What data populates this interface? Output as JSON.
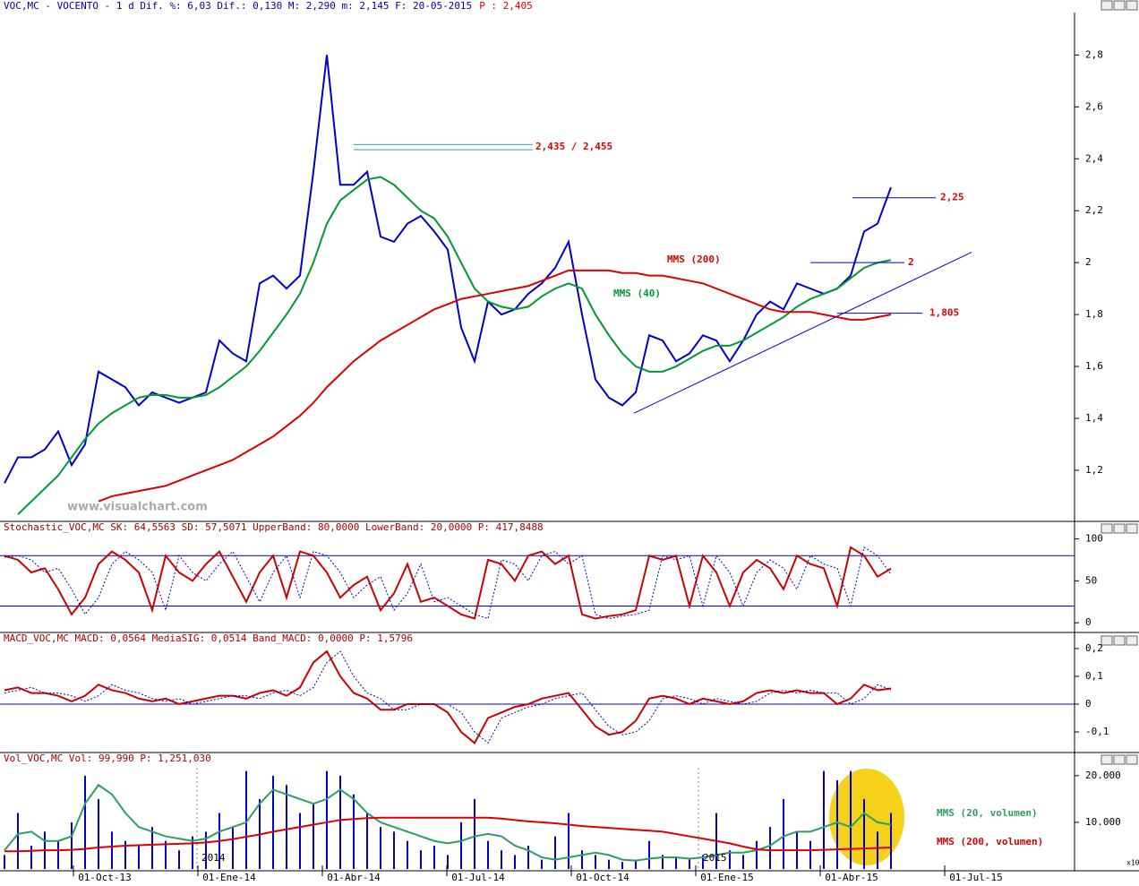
{
  "chart_data": [
    {
      "type": "line",
      "header": "VOC,MC - VOCENTO -  1 d Dif. %: 6,03 Dif.: 0,130 M: 2,290 m: 2,145 F: 20-05-2015",
      "header_price": "P : 2,405",
      "watermark": "www.visualchart.com",
      "ylim": [
        1.01,
        2.96
      ],
      "yticks": [
        {
          "value": 1.2,
          "label": "1,2"
        },
        {
          "value": 1.4,
          "label": "1,4"
        },
        {
          "value": 1.6,
          "label": "1,6"
        },
        {
          "value": 1.8,
          "label": "1,8"
        },
        {
          "value": 2,
          "label": "2"
        },
        {
          "value": 2.2,
          "label": "2,2"
        },
        {
          "value": 2.4,
          "label": "2,4"
        },
        {
          "value": 2.6,
          "label": "2,6"
        },
        {
          "value": 2.8,
          "label": "2,8"
        }
      ],
      "series": [
        {
          "color": "#0000cc",
          "values": [
            1.15,
            1.25,
            1.25,
            1.28,
            1.35,
            1.22,
            1.3,
            1.58,
            1.55,
            1.52,
            1.45,
            1.5,
            1.48,
            1.46,
            1.48,
            1.5,
            1.7,
            1.65,
            1.62,
            1.92,
            1.95,
            1.9,
            1.95,
            2.35,
            2.8,
            2.3,
            2.3,
            2.35,
            2.1,
            2.08,
            2.15,
            2.18,
            2.12,
            2.05,
            1.75,
            1.62,
            1.85,
            1.8,
            1.82,
            1.88,
            1.92,
            1.98,
            2.08,
            1.8,
            1.55,
            1.48,
            1.45,
            1.5,
            1.72,
            1.7,
            1.62,
            1.65,
            1.72,
            1.7,
            1.62,
            1.7,
            1.8,
            1.85,
            1.82,
            1.92,
            1.9,
            1.88,
            1.9,
            1.95,
            2.12,
            2.15,
            2.29
          ]
        },
        {
          "name": "MMS (40)",
          "color": "#009933",
          "values": [
            null,
            1.03,
            1.08,
            1.13,
            1.18,
            1.25,
            1.32,
            1.38,
            1.42,
            1.45,
            1.48,
            1.49,
            1.49,
            1.48,
            1.48,
            1.49,
            1.52,
            1.56,
            1.6,
            1.66,
            1.73,
            1.8,
            1.88,
            2.0,
            2.15,
            2.24,
            2.28,
            2.32,
            2.33,
            2.3,
            2.25,
            2.2,
            2.17,
            2.1,
            2.0,
            1.9,
            1.85,
            1.83,
            1.82,
            1.83,
            1.87,
            1.9,
            1.92,
            1.9,
            1.8,
            1.72,
            1.65,
            1.6,
            1.58,
            1.58,
            1.6,
            1.63,
            1.66,
            1.68,
            1.68,
            1.7,
            1.73,
            1.76,
            1.79,
            1.83,
            1.86,
            1.88,
            1.9,
            1.94,
            1.98,
            2.0,
            2.01
          ]
        },
        {
          "name": "MMS (200)",
          "color": "#dd0000",
          "values": [
            null,
            null,
            null,
            null,
            null,
            null,
            null,
            1.08,
            1.1,
            1.11,
            1.12,
            1.13,
            1.14,
            1.16,
            1.18,
            1.2,
            1.22,
            1.24,
            1.27,
            1.3,
            1.33,
            1.37,
            1.41,
            1.46,
            1.52,
            1.57,
            1.62,
            1.66,
            1.7,
            1.73,
            1.76,
            1.79,
            1.82,
            1.84,
            1.86,
            1.87,
            1.88,
            1.89,
            1.9,
            1.91,
            1.93,
            1.95,
            1.97,
            1.97,
            1.97,
            1.97,
            1.96,
            1.96,
            1.95,
            1.95,
            1.94,
            1.93,
            1.92,
            1.9,
            1.88,
            1.86,
            1.84,
            1.82,
            1.81,
            1.81,
            1.81,
            1.8,
            1.79,
            1.78,
            1.78,
            1.79,
            1.8
          ]
        }
      ],
      "annotations": [
        {
          "label": "2,435 / 2,455",
          "values": [
            2.435,
            2.455
          ]
        },
        {
          "label": "2,25",
          "value": 2.25
        },
        {
          "label": "2",
          "value": 2
        },
        {
          "label": "1,805",
          "value": 1.805
        }
      ],
      "trendline": [
        1.42,
        2.04
      ]
    },
    {
      "type": "line",
      "header": "Stochastic_VOC,MC SK: 64,5563 SD: 57,5071 UpperBand: 80,0000 LowerBand: 20,0000 P: 417,8488",
      "ylim": [
        -10.5,
        107
      ],
      "yticks": [
        0,
        50,
        100
      ],
      "bands": [
        80,
        20
      ],
      "series": [
        {
          "color": "#cc0000",
          "values": [
            80,
            75,
            60,
            65,
            40,
            10,
            30,
            70,
            85,
            75,
            60,
            15,
            80,
            60,
            50,
            70,
            85,
            55,
            25,
            60,
            80,
            30,
            85,
            80,
            60,
            30,
            45,
            55,
            15,
            35,
            70,
            25,
            30,
            20,
            10,
            5,
            75,
            70,
            50,
            80,
            85,
            70,
            80,
            10,
            5,
            8,
            10,
            15,
            80,
            75,
            80,
            20,
            80,
            60,
            20,
            60,
            75,
            65,
            40,
            80,
            70,
            65,
            20,
            90,
            80,
            55,
            64.5563
          ]
        },
        {
          "color": "#0000cc",
          "dotted": true,
          "values": [
            78,
            80,
            75,
            60,
            65,
            40,
            10,
            30,
            70,
            85,
            75,
            60,
            15,
            80,
            60,
            50,
            70,
            85,
            55,
            25,
            60,
            80,
            30,
            85,
            80,
            60,
            30,
            45,
            55,
            15,
            35,
            70,
            25,
            30,
            20,
            10,
            5,
            75,
            70,
            50,
            80,
            85,
            70,
            80,
            10,
            5,
            8,
            10,
            15,
            80,
            75,
            80,
            20,
            80,
            60,
            20,
            60,
            75,
            65,
            40,
            80,
            70,
            65,
            20,
            90,
            80,
            57.5071
          ]
        }
      ]
    },
    {
      "type": "line",
      "header": "MACD_VOC,MC MACD: 0,0564 MediaSIG: 0,0514 Band_MACD: 0,0000 P: 1,5796",
      "ylim": [
        -0.174,
        0.219
      ],
      "yticks": [
        {
          "value": -0.1,
          "label": "-0,1"
        },
        0,
        {
          "value": 0.1,
          "label": "0,1"
        },
        {
          "value": 0.2,
          "label": "0,2"
        }
      ],
      "series": [
        {
          "color": "#cc0000",
          "values": [
            0.05,
            0.06,
            0.04,
            0.04,
            0.03,
            0.01,
            0.03,
            0.07,
            0.05,
            0.04,
            0.02,
            0.01,
            0.02,
            0.0,
            0.01,
            0.02,
            0.03,
            0.03,
            0.02,
            0.04,
            0.05,
            0.03,
            0.06,
            0.15,
            0.19,
            0.1,
            0.04,
            0.02,
            -0.02,
            -0.02,
            0.0,
            0.0,
            0.0,
            -0.03,
            -0.1,
            -0.14,
            -0.05,
            -0.03,
            -0.01,
            0.0,
            0.02,
            0.03,
            0.04,
            -0.02,
            -0.08,
            -0.11,
            -0.1,
            -0.06,
            0.02,
            0.03,
            0.02,
            0.0,
            0.02,
            0.01,
            0.0,
            0.01,
            0.04,
            0.05,
            0.04,
            0.05,
            0.04,
            0.04,
            0.0,
            0.02,
            0.07,
            0.05,
            0.0564
          ]
        },
        {
          "color": "#0000cc",
          "dotted": true,
          "values": [
            0.04,
            0.05,
            0.06,
            0.04,
            0.04,
            0.03,
            0.01,
            0.03,
            0.07,
            0.05,
            0.04,
            0.02,
            0.01,
            0.02,
            0.0,
            0.01,
            0.02,
            0.03,
            0.03,
            0.02,
            0.04,
            0.05,
            0.03,
            0.06,
            0.15,
            0.19,
            0.1,
            0.04,
            0.02,
            -0.02,
            -0.02,
            0.0,
            0.0,
            0.0,
            -0.03,
            -0.1,
            -0.14,
            -0.05,
            -0.03,
            -0.01,
            0.0,
            0.02,
            0.03,
            0.04,
            -0.02,
            -0.08,
            -0.11,
            -0.1,
            -0.06,
            0.02,
            0.03,
            0.02,
            0.0,
            0.02,
            0.01,
            0.0,
            0.01,
            0.04,
            0.05,
            0.04,
            0.05,
            0.04,
            0.04,
            0.0,
            0.02,
            0.07,
            0.0514
          ]
        }
      ]
    },
    {
      "type": "bar",
      "header": "Vol_VOC,MC Vol: 99,990  P: 1,251,030",
      "ylim": [
        0,
        21700
      ],
      "yticks": [
        {
          "value": 10000,
          "label": "10.000"
        },
        {
          "value": 20000,
          "label": "20.000"
        }
      ],
      "xticks": [
        "01-Oct-13",
        "01-Ene-14",
        "01-Abr-14",
        "01-Jul-14",
        "01-Oct-14",
        "01-Ene-15",
        "01-Abr-15",
        "01-Jul-15"
      ],
      "year_labels": [
        "2014",
        "2015"
      ],
      "scale_note": "x10",
      "color": "#0000cc",
      "values": [
        3000,
        12000,
        5000,
        8000,
        6000,
        10000,
        20000,
        15000,
        8000,
        6000,
        5000,
        9000,
        6000,
        4000,
        7000,
        8000,
        12000,
        9000,
        21000,
        15000,
        20000,
        18000,
        12000,
        14000,
        21000,
        20000,
        16000,
        12000,
        9000,
        8000,
        6000,
        4000,
        5000,
        3000,
        10000,
        15000,
        6000,
        4000,
        3000,
        5000,
        2000,
        7000,
        12000,
        4000,
        3000,
        2000,
        1500,
        2000,
        6000,
        3000,
        2500,
        2000,
        3000,
        12000,
        4000,
        3000,
        6000,
        9000,
        15000,
        8000,
        6000,
        21000,
        19000,
        21000,
        15000,
        8000,
        12000
      ],
      "series": [
        {
          "name": "MMS (20, volumen)",
          "color": "#2e9e5e",
          "values": [
            4000,
            7500,
            8000,
            6000,
            6000,
            7000,
            14000,
            18000,
            16000,
            12000,
            9000,
            8000,
            7000,
            6500,
            6000,
            6500,
            8000,
            9000,
            10000,
            14000,
            17000,
            16000,
            15000,
            14000,
            15000,
            17000,
            15000,
            12000,
            10000,
            9000,
            8000,
            7000,
            6000,
            5500,
            6000,
            7000,
            7500,
            7000,
            5000,
            4000,
            2500,
            2000,
            2500,
            3000,
            3500,
            3000,
            2000,
            1800,
            2200,
            2500,
            2500,
            2200,
            2500,
            3000,
            3500,
            3500,
            4000,
            5000,
            7000,
            8000,
            8000,
            9000,
            10000,
            9000,
            12000,
            10000,
            9500
          ]
        },
        {
          "name": "MMS (200, volumen)",
          "color": "#dd0000",
          "values": [
            3800,
            3800,
            3900,
            4000,
            4000,
            4100,
            4300,
            4600,
            4800,
            5000,
            5100,
            5200,
            5300,
            5400,
            5500,
            5700,
            6000,
            6400,
            6900,
            7400,
            8000,
            8500,
            9000,
            9500,
            10000,
            10500,
            10700,
            10900,
            11000,
            11000,
            11000,
            11000,
            11000,
            11000,
            11000,
            11000,
            11000,
            10800,
            10500,
            10200,
            10000,
            9800,
            9500,
            9200,
            9000,
            8800,
            8600,
            8400,
            8200,
            8000,
            7500,
            7000,
            6500,
            6000,
            5500,
            4800,
            4200,
            4000,
            4000,
            4000,
            4000,
            4100,
            4200,
            4300,
            4400,
            4500,
            4600
          ]
        }
      ]
    }
  ]
}
